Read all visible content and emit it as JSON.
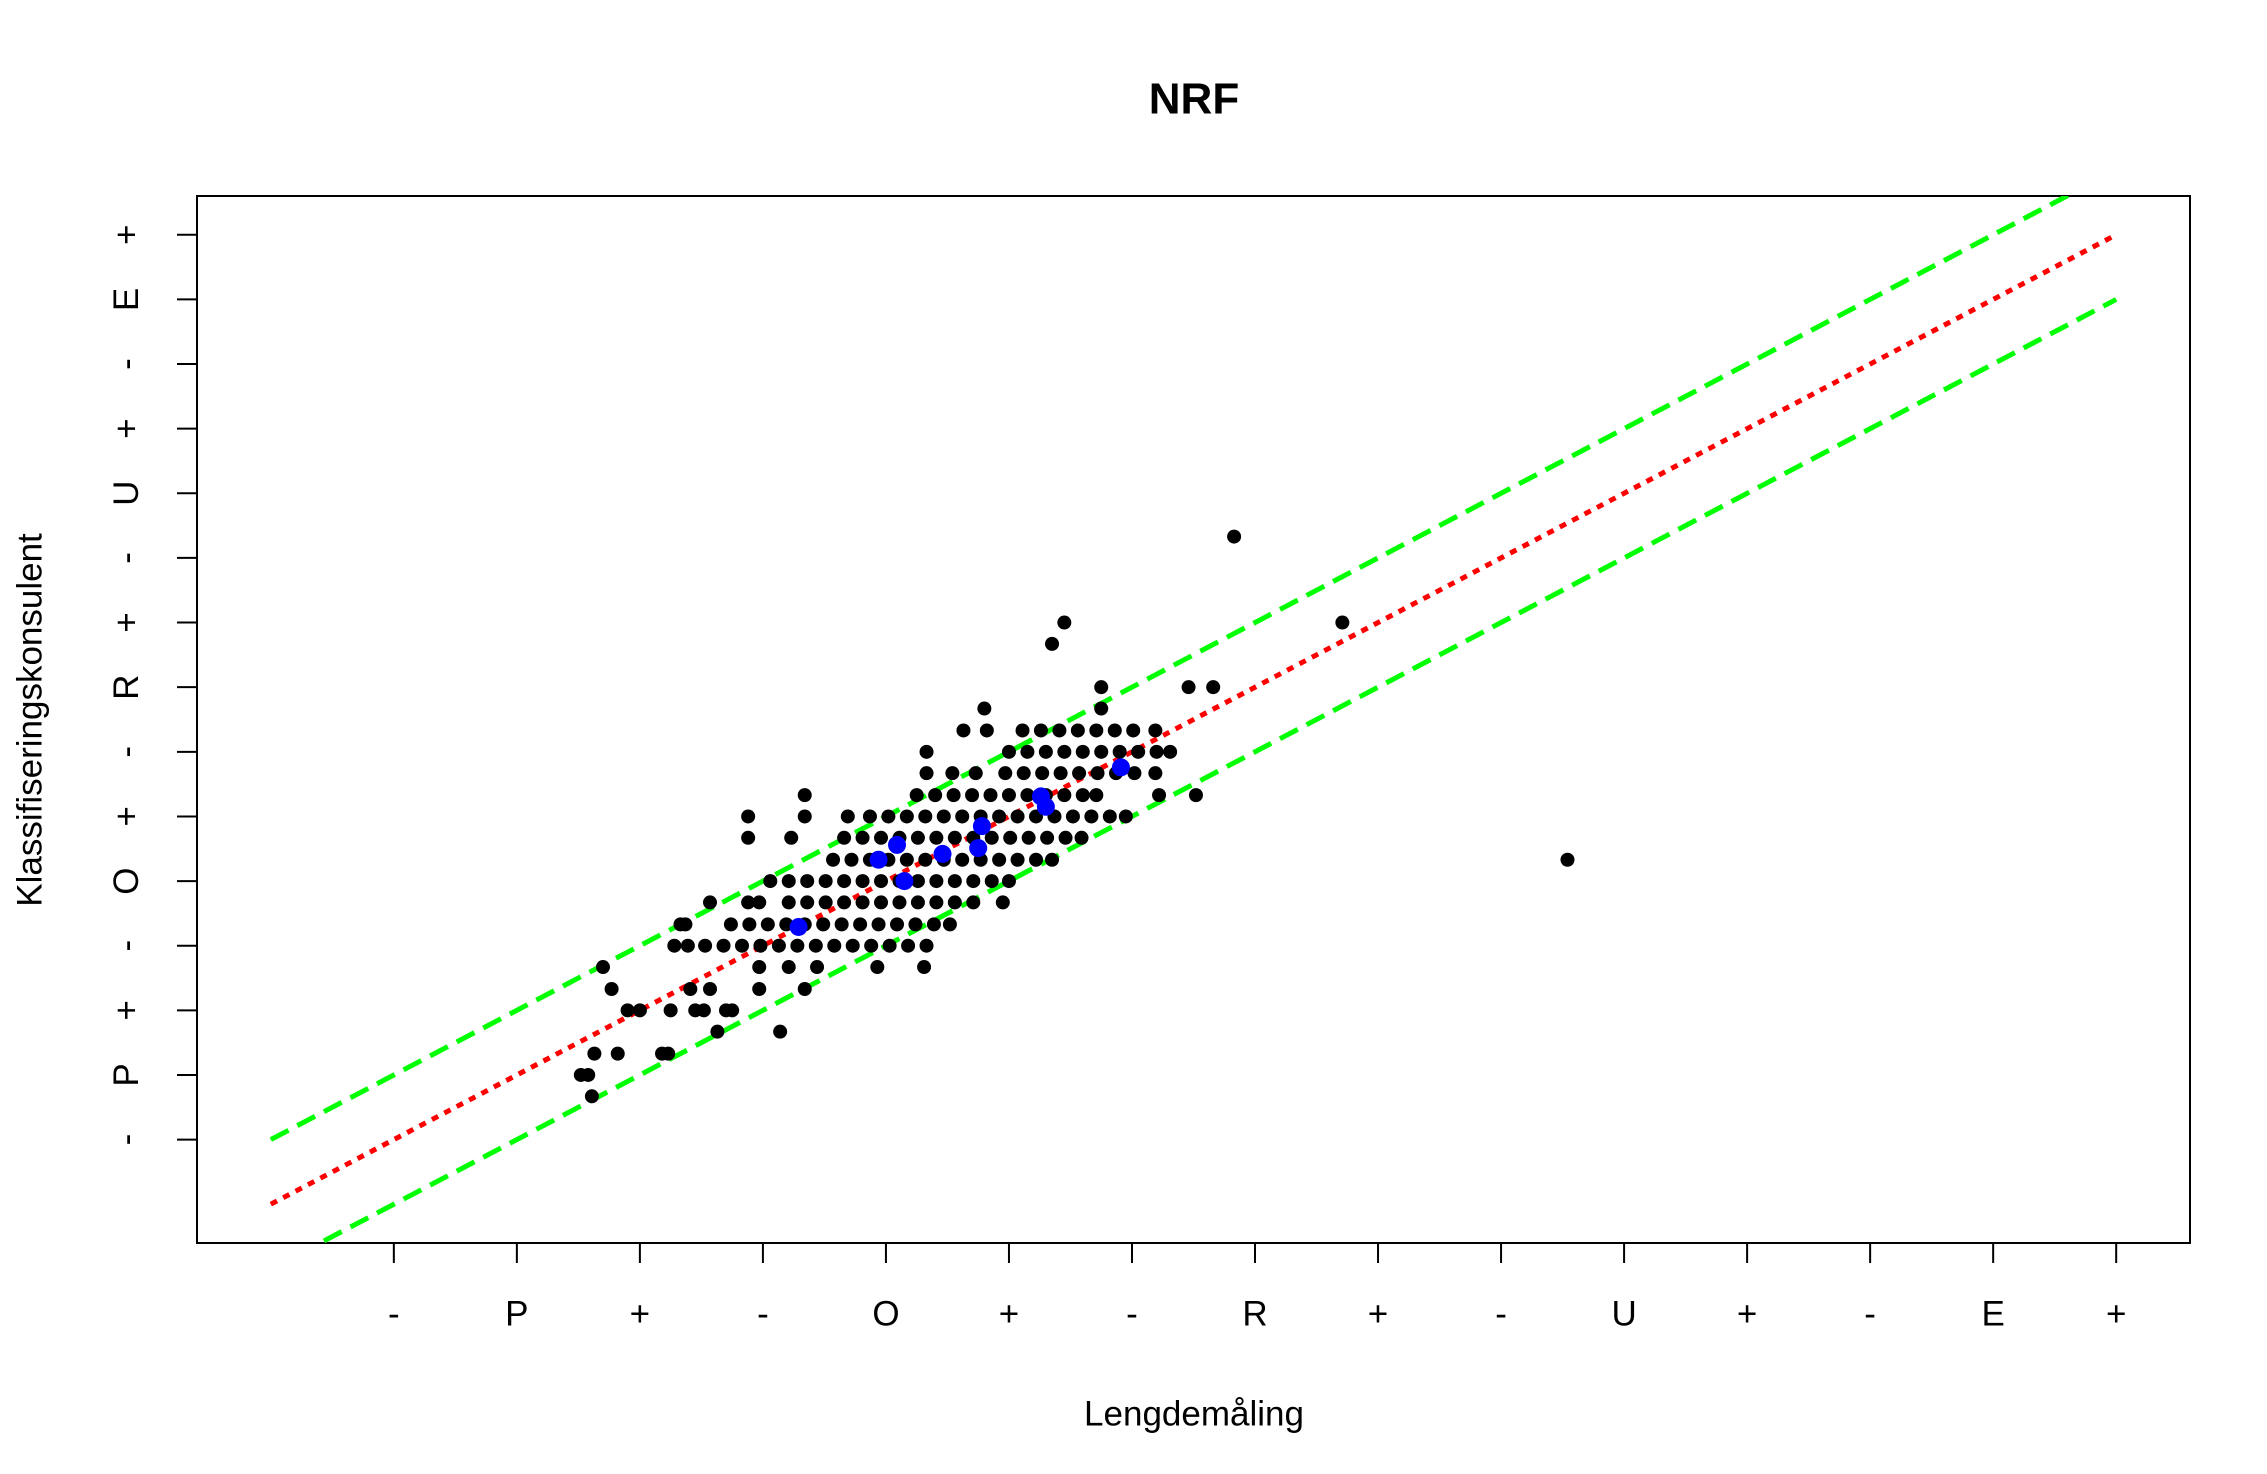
{
  "chart_data": {
    "type": "scatter",
    "title": "NRF",
    "xlabel": "Lengdemåling",
    "ylabel": "Klassifiseringskonsulent",
    "xlim": [
      -0.6,
      15.6
    ],
    "ylim": [
      -0.6,
      15.6
    ],
    "xticks": [
      {
        "value": 1,
        "label": "-"
      },
      {
        "value": 2,
        "label": "P"
      },
      {
        "value": 3,
        "label": "+"
      },
      {
        "value": 4,
        "label": "-"
      },
      {
        "value": 5,
        "label": "O"
      },
      {
        "value": 6,
        "label": "+"
      },
      {
        "value": 7,
        "label": "-"
      },
      {
        "value": 8,
        "label": "R"
      },
      {
        "value": 9,
        "label": "+"
      },
      {
        "value": 10,
        "label": "-"
      },
      {
        "value": 11,
        "label": "U"
      },
      {
        "value": 12,
        "label": "+"
      },
      {
        "value": 13,
        "label": "-"
      },
      {
        "value": 14,
        "label": "E"
      },
      {
        "value": 15,
        "label": "+"
      }
    ],
    "yticks": [
      {
        "value": 1,
        "label": "-"
      },
      {
        "value": 2,
        "label": "P"
      },
      {
        "value": 3,
        "label": "+"
      },
      {
        "value": 4,
        "label": "-"
      },
      {
        "value": 5,
        "label": "O"
      },
      {
        "value": 6,
        "label": "+"
      },
      {
        "value": 7,
        "label": "-"
      },
      {
        "value": 8,
        "label": "R"
      },
      {
        "value": 9,
        "label": "+"
      },
      {
        "value": 10,
        "label": "-"
      },
      {
        "value": 11,
        "label": "U"
      },
      {
        "value": 12,
        "label": "+"
      },
      {
        "value": 13,
        "label": "-"
      },
      {
        "value": 14,
        "label": "E"
      },
      {
        "value": 15,
        "label": "+"
      }
    ],
    "series": [
      {
        "color": "#000000",
        "size": "small",
        "x": [
          2.61,
          2.52,
          2.58,
          2.63,
          2.82,
          3.18,
          3.23,
          3.63,
          4.14,
          2.9,
          3.0,
          3.25,
          3.45,
          3.52,
          3.7,
          3.75,
          2.77,
          3.41,
          3.57,
          3.97,
          4.34,
          2.7,
          3.97,
          4.21,
          4.44,
          4.93,
          5.31,
          3.28,
          3.39,
          3.53,
          3.68,
          3.83,
          3.98,
          4.13,
          4.28,
          4.43,
          4.58,
          4.73,
          4.88,
          5.03,
          5.18,
          5.33,
          3.33,
          3.37,
          3.74,
          3.89,
          4.04,
          4.19,
          4.34,
          4.49,
          4.64,
          4.79,
          4.94,
          5.09,
          5.24,
          5.39,
          5.52,
          3.57,
          3.88,
          3.97,
          4.21,
          4.36,
          4.51,
          4.66,
          4.81,
          4.96,
          5.11,
          5.26,
          5.41,
          5.56,
          5.71,
          5.95,
          4.06,
          4.21,
          4.36,
          4.51,
          4.66,
          4.81,
          4.96,
          5.11,
          5.26,
          5.41,
          5.56,
          5.71,
          5.86,
          6.0,
          4.57,
          4.72,
          4.87,
          5.02,
          5.17,
          5.32,
          5.47,
          5.62,
          5.77,
          5.92,
          6.07,
          6.22,
          6.35,
          10.54,
          3.88,
          4.23,
          4.66,
          4.81,
          4.96,
          5.11,
          5.26,
          5.41,
          5.56,
          5.71,
          5.86,
          6.01,
          6.16,
          6.31,
          6.46,
          6.59,
          3.88,
          4.34,
          4.69,
          4.87,
          5.02,
          5.17,
          5.32,
          5.47,
          5.62,
          5.77,
          5.92,
          6.07,
          6.22,
          6.37,
          6.52,
          6.67,
          6.82,
          6.95,
          4.34,
          5.25,
          5.4,
          5.55,
          5.7,
          5.85,
          6.0,
          6.15,
          6.3,
          6.45,
          6.6,
          6.71,
          7.22,
          7.52,
          5.33,
          5.54,
          5.73,
          5.97,
          6.12,
          6.27,
          6.42,
          6.57,
          6.72,
          6.87,
          7.02,
          7.19,
          5.33,
          6.0,
          6.15,
          6.3,
          6.45,
          6.6,
          6.75,
          6.9,
          7.05,
          7.2,
          7.31,
          5.63,
          5.82,
          6.11,
          6.26,
          6.41,
          6.56,
          6.71,
          6.86,
          7.01,
          7.19,
          5.8,
          6.75,
          6.75,
          7.46,
          7.66,
          6.35,
          6.45,
          8.71,
          7.83
        ],
        "values": [
          1.67,
          2,
          2,
          2.33,
          2.33,
          2.33,
          2.33,
          2.67,
          2.67,
          3,
          3,
          3,
          3,
          3,
          3,
          3,
          3.33,
          3.33,
          3.33,
          3.33,
          3.33,
          3.67,
          3.67,
          3.67,
          3.67,
          3.67,
          3.67,
          4,
          4,
          4,
          4,
          4,
          4,
          4,
          4,
          4,
          4,
          4,
          4,
          4,
          4,
          4,
          4.33,
          4.33,
          4.33,
          4.33,
          4.33,
          4.33,
          4.33,
          4.33,
          4.33,
          4.33,
          4.33,
          4.33,
          4.33,
          4.33,
          4.33,
          4.67,
          4.67,
          4.67,
          4.67,
          4.67,
          4.67,
          4.67,
          4.67,
          4.67,
          4.67,
          4.67,
          4.67,
          4.67,
          4.67,
          4.67,
          5,
          5,
          5,
          5,
          5,
          5,
          5,
          5,
          5,
          5,
          5,
          5,
          5,
          5,
          5.33,
          5.33,
          5.33,
          5.33,
          5.33,
          5.33,
          5.33,
          5.33,
          5.33,
          5.33,
          5.33,
          5.33,
          5.33,
          5.33,
          5.67,
          5.67,
          5.67,
          5.67,
          5.67,
          5.67,
          5.67,
          5.67,
          5.67,
          5.67,
          5.67,
          5.67,
          5.67,
          5.67,
          5.67,
          5.67,
          6,
          6,
          6,
          6,
          6,
          6,
          6,
          6,
          6,
          6,
          6,
          6,
          6,
          6,
          6,
          6,
          6,
          6,
          6.33,
          6.33,
          6.33,
          6.33,
          6.33,
          6.33,
          6.33,
          6.33,
          6.33,
          6.33,
          6.33,
          6.33,
          6.33,
          6.33,
          6.67,
          6.67,
          6.67,
          6.67,
          6.67,
          6.67,
          6.67,
          6.67,
          6.67,
          6.67,
          6.67,
          6.67,
          7,
          7,
          7,
          7,
          7,
          7,
          7,
          7,
          7,
          7,
          7,
          7.33,
          7.33,
          7.33,
          7.33,
          7.33,
          7.33,
          7.33,
          7.33,
          7.33,
          7.33,
          7.67,
          7.67,
          8,
          8,
          8,
          8.67,
          9,
          9,
          10.33
        ]
      },
      {
        "color": "#0000ff",
        "size": "large",
        "x": [
          4.29,
          4.94,
          5.09,
          5.15,
          5.46,
          5.75,
          5.78,
          6.26,
          6.3,
          6.91
        ],
        "values": [
          4.29,
          5.33,
          5.56,
          5.0,
          5.42,
          5.51,
          5.85,
          6.31,
          6.15,
          6.76
        ]
      }
    ],
    "lines": [
      {
        "color": "#ff0000",
        "linestyle": "dotted",
        "x": [
          0,
          15
        ],
        "values": [
          0,
          15
        ]
      },
      {
        "color": "#00ff00",
        "linestyle": "dashed",
        "x": [
          0,
          15
        ],
        "values": [
          1,
          16
        ]
      },
      {
        "color": "#00ff00",
        "linestyle": "dashed",
        "x": [
          0,
          15
        ],
        "values": [
          -1,
          14
        ]
      }
    ]
  }
}
